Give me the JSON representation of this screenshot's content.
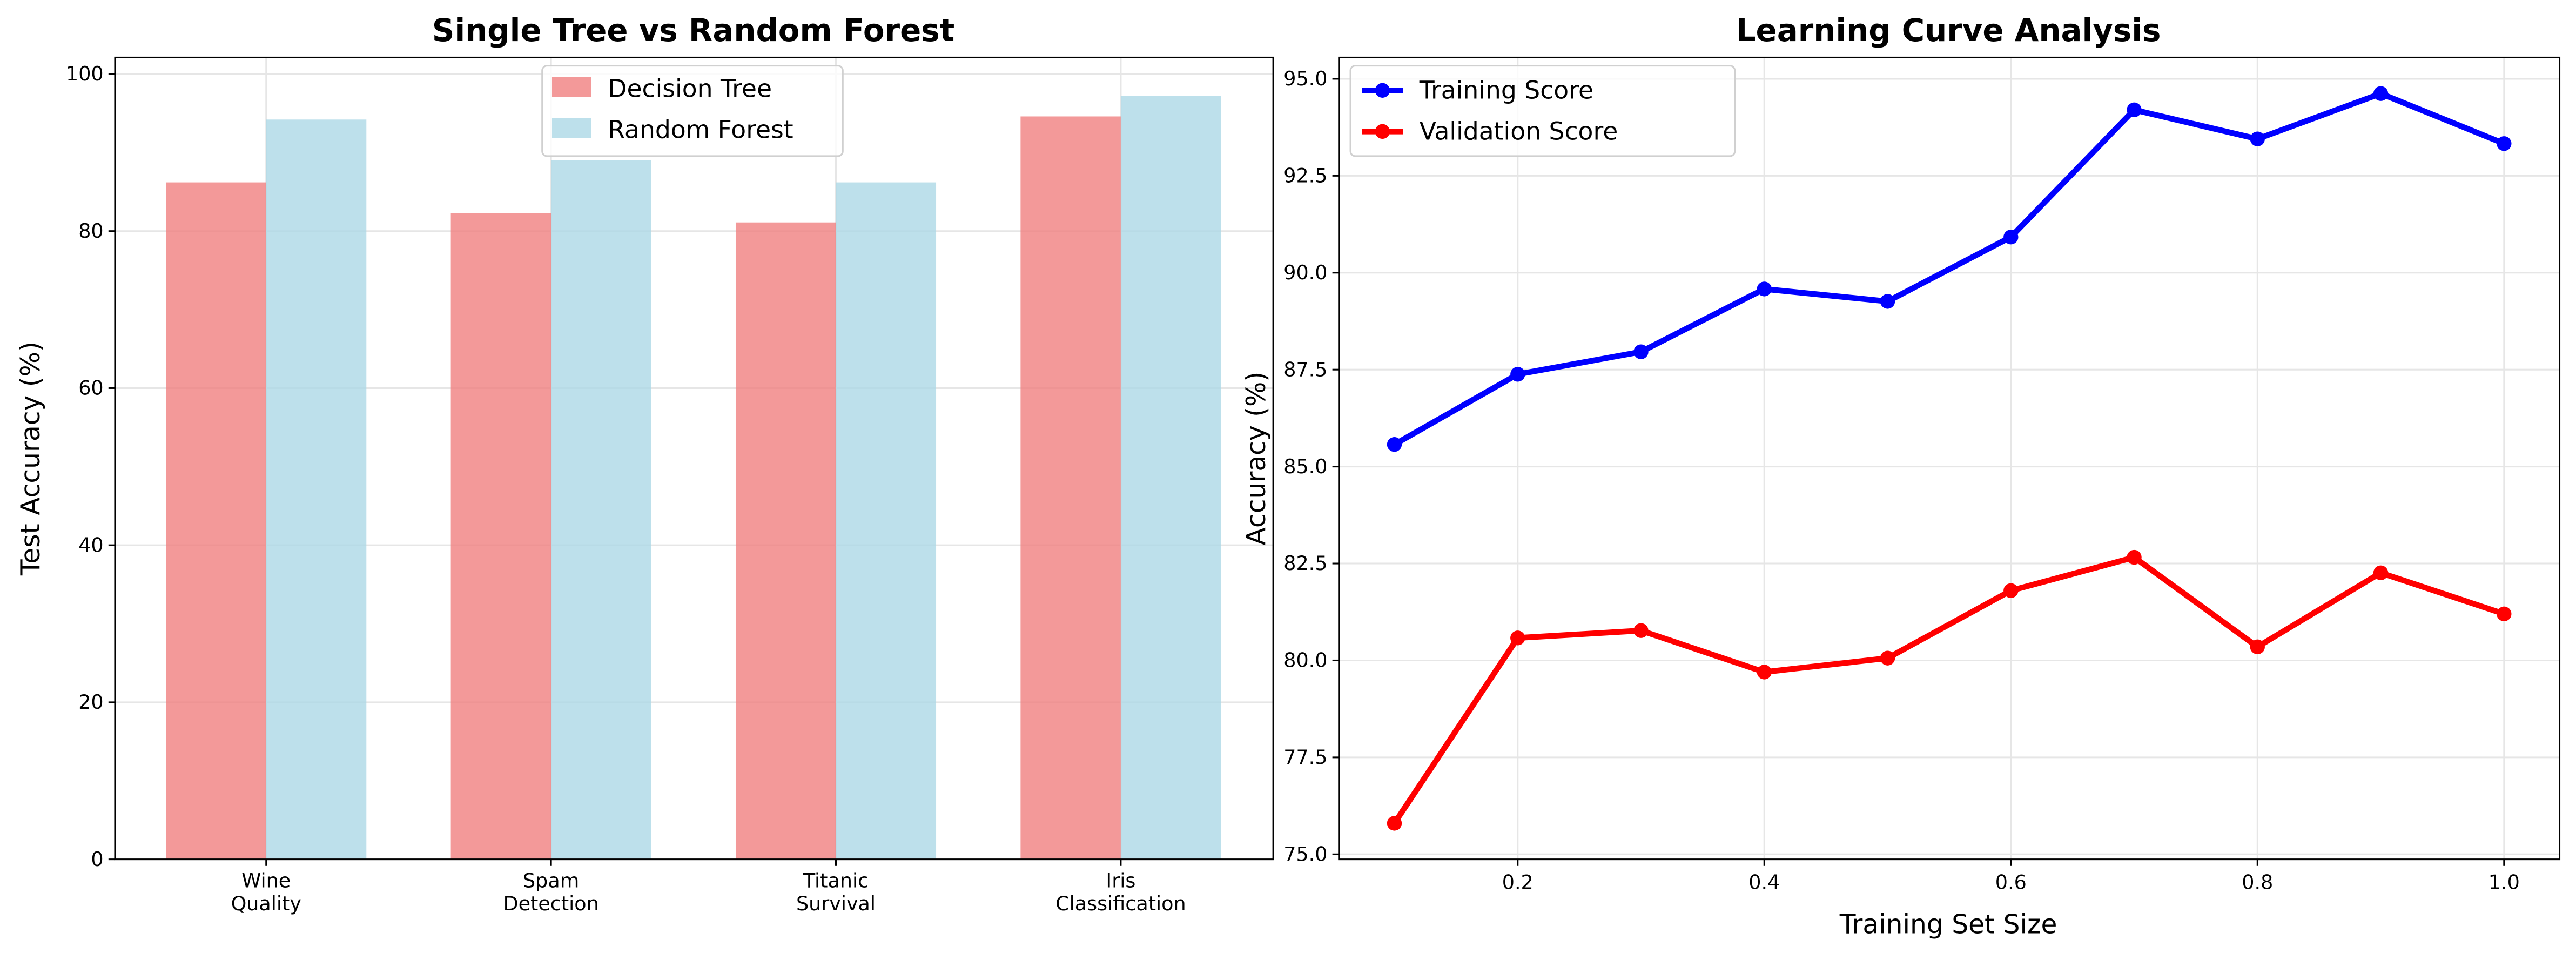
{
  "chart_data": [
    {
      "type": "bar",
      "title": "Single Tree vs Random Forest",
      "xlabel": "",
      "ylabel": "Test Accuracy (%)",
      "categories": [
        [
          "Wine",
          "Quality"
        ],
        [
          "Spam",
          "Detection"
        ],
        [
          "Titanic",
          "Survival"
        ],
        [
          "Iris",
          "Classification"
        ]
      ],
      "series": [
        {
          "name": "Decision Tree",
          "color": "#f08080",
          "values": [
            86.2,
            82.3,
            81.1,
            94.6
          ]
        },
        {
          "name": "Random Forest",
          "color": "#add8e6",
          "values": [
            94.2,
            89.0,
            86.2,
            97.2
          ]
        }
      ],
      "ylim": [
        0,
        102.1
      ],
      "yticks": [
        0,
        20,
        40,
        60,
        80,
        100
      ],
      "ytick_labels": [
        "0",
        "20",
        "40",
        "60",
        "80",
        "100"
      ],
      "grid": true,
      "legend_position": "upper-center"
    },
    {
      "type": "line",
      "title": "Learning Curve Analysis",
      "xlabel": "Training Set Size",
      "ylabel": "Accuracy (%)",
      "x": [
        0.1,
        0.2,
        0.3,
        0.4,
        0.5,
        0.6,
        0.7,
        0.8,
        0.9,
        1.0
      ],
      "series": [
        {
          "name": "Training Score",
          "color": "#0000ff",
          "values": [
            85.57,
            87.38,
            87.96,
            89.58,
            89.26,
            90.92,
            94.2,
            93.45,
            94.62,
            93.33
          ]
        },
        {
          "name": "Validation Score",
          "color": "#ff0000",
          "values": [
            75.8,
            80.58,
            80.77,
            79.7,
            80.06,
            81.8,
            82.66,
            80.35,
            82.26,
            81.2
          ]
        }
      ],
      "xlim": [
        0.055,
        1.045
      ],
      "ylim": [
        74.87,
        95.55
      ],
      "xticks": [
        0.2,
        0.4,
        0.6,
        0.8,
        1.0
      ],
      "xtick_labels": [
        "0.2",
        "0.4",
        "0.6",
        "0.8",
        "1.0"
      ],
      "yticks": [
        75.0,
        77.5,
        80.0,
        82.5,
        85.0,
        87.5,
        90.0,
        92.5,
        95.0
      ],
      "ytick_labels": [
        "75.0",
        "77.5",
        "80.0",
        "82.5",
        "85.0",
        "87.5",
        "90.0",
        "92.5",
        "95.0"
      ],
      "grid": true,
      "legend_position": "upper-left"
    }
  ]
}
